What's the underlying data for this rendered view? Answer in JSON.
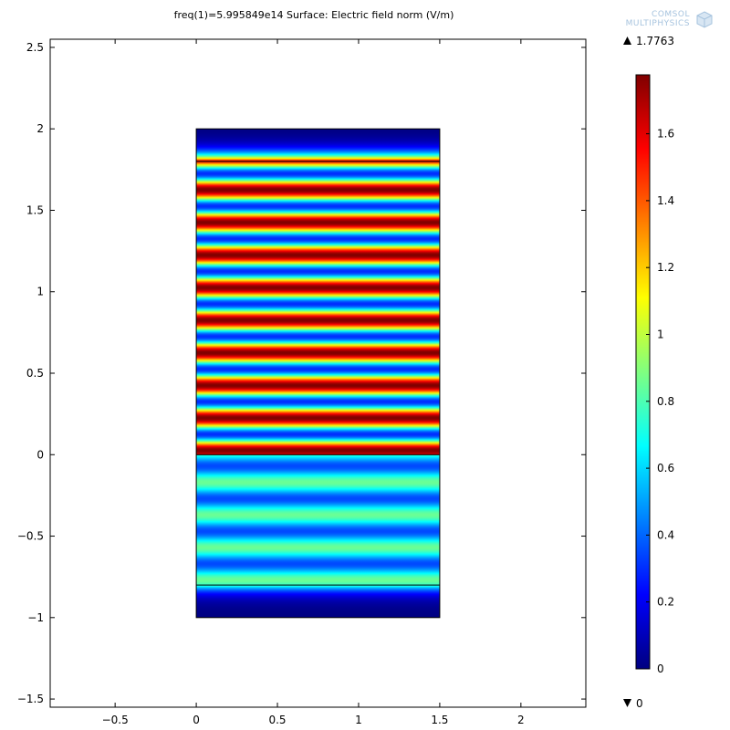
{
  "chart_data": {
    "type": "heatmap",
    "title": "freq(1)=5.995849e14  Surface: Electric field norm (V/m)",
    "colormap": "rainbow",
    "x_ticks": [
      "−0.5",
      "0",
      "0.5",
      "1",
      "1.5",
      "2"
    ],
    "x_tick_values": [
      -0.5,
      0,
      0.5,
      1,
      1.5,
      2
    ],
    "y_ticks": [
      "−1.5",
      "−1",
      "−0.5",
      "0",
      "0.5",
      "1",
      "1.5",
      "2",
      "2.5"
    ],
    "y_tick_values": [
      -1.5,
      -1,
      -0.5,
      0,
      0.5,
      1,
      1.5,
      2,
      2.5
    ],
    "xlim": [
      -0.9,
      2.4
    ],
    "ylim": [
      -1.55,
      2.55
    ],
    "domain": {
      "x": [
        0,
        1.5
      ],
      "y": [
        -1,
        2
      ]
    },
    "interfaces_y": [
      1.8,
      0,
      -0.8
    ],
    "regions": [
      {
        "y": [
          1.8,
          2.0
        ],
        "description": "decaying field",
        "max": 1.7
      },
      {
        "y": [
          0.0,
          1.8
        ],
        "min": 0.3,
        "max": 1.7763,
        "wavelength": 0.2
      },
      {
        "y": [
          -0.8,
          0.0
        ],
        "min": 0.35,
        "max": 0.85,
        "wavelength": 0.2
      },
      {
        "y": [
          -1.0,
          -0.8
        ],
        "description": "decaying field",
        "max": 0.8
      }
    ],
    "colorbar": {
      "ticks": [
        "0",
        "0.2",
        "0.4",
        "0.6",
        "0.8",
        "1",
        "1.2",
        "1.4",
        "1.6"
      ],
      "tick_values": [
        0,
        0.2,
        0.4,
        0.6,
        0.8,
        1.0,
        1.2,
        1.4,
        1.6
      ],
      "range": [
        0,
        1.7763
      ]
    },
    "max_label": "1.7763",
    "min_label": "0"
  },
  "logo": {
    "line1": "COMSOL",
    "line2": "MULTIPHYSICS"
  },
  "colors": {
    "boundary": "#000000",
    "logo": "#a6c3de"
  }
}
